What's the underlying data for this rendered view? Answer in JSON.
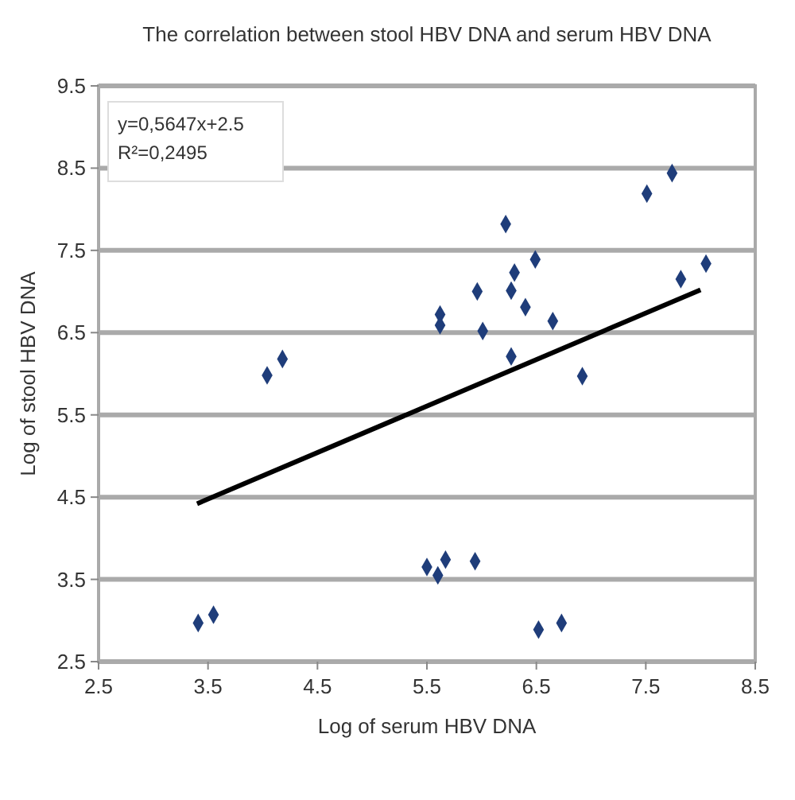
{
  "chart_data": {
    "type": "scatter",
    "title": "The correlation between stool HBV DNA and serum HBV DNA",
    "xlabel": "Log of serum HBV DNA",
    "ylabel": "Log of stool HBV DNA",
    "xlim": [
      2.5,
      8.5
    ],
    "xticks": [
      2.5,
      3.5,
      4.5,
      5.5,
      6.5,
      7.5,
      8.5
    ],
    "ylim": [
      2.5,
      9.5
    ],
    "yticks": [
      2.5,
      3.5,
      4.5,
      5.5,
      6.5,
      7.5,
      8.5,
      9.5
    ],
    "grid": "y",
    "annotations": [
      "y=0,5647x+2.5",
      "R²=0,2495"
    ],
    "series": [
      {
        "marker": "diamond",
        "color": "#1f3d7a",
        "x": [
          7.74,
          7.51,
          6.22,
          6.49,
          8.05,
          7.82,
          6.3,
          5.96,
          6.27,
          6.4,
          5.62,
          5.62,
          6.65,
          6.01,
          6.27,
          6.92,
          4.18,
          4.04,
          3.41,
          3.55,
          5.5,
          5.6,
          5.67,
          5.94,
          6.52,
          6.73
        ],
        "values": [
          8.44,
          8.19,
          7.82,
          7.39,
          7.34,
          7.15,
          7.23,
          7.0,
          7.01,
          6.81,
          6.72,
          6.59,
          6.64,
          6.52,
          6.21,
          5.97,
          6.18,
          5.98,
          2.97,
          3.07,
          3.65,
          3.55,
          3.74,
          3.72,
          2.89,
          2.97
        ]
      },
      {
        "type": "line",
        "marker": "none",
        "color": "#000000",
        "x": [
          3.4,
          8.0
        ],
        "values": [
          4.42,
          7.02
        ]
      }
    ]
  }
}
